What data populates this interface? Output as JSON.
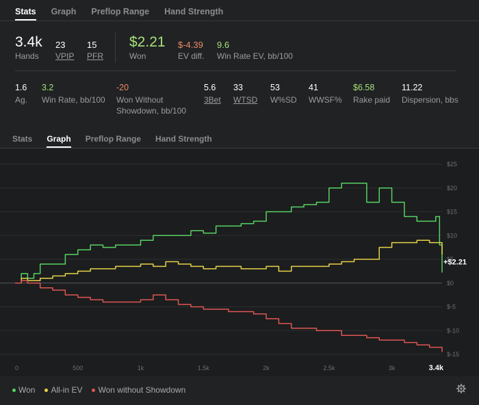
{
  "tabs_top": [
    "Stats",
    "Graph",
    "Preflop Range",
    "Hand Strength"
  ],
  "tabs_bottom": [
    "Stats",
    "Graph",
    "Preflop Range",
    "Hand Strength"
  ],
  "summary": {
    "hands": {
      "value": "3.4k",
      "label": "Hands"
    },
    "vpip": {
      "value": "23",
      "label": "VPIP"
    },
    "pfr": {
      "value": "15",
      "label": "PFR"
    },
    "won": {
      "value": "$2.21",
      "label": "Won"
    },
    "ev_diff": {
      "value": "$-4.39",
      "label": "EV diff."
    },
    "win_rate_ev": {
      "value": "9.6",
      "label": "Win Rate EV, bb/100"
    }
  },
  "stats": [
    {
      "value": "1.6",
      "label": "Ag.",
      "color": "#ffffff"
    },
    {
      "value": "3.2",
      "label": "Win Rate, bb/100",
      "color": "#a6e07b"
    },
    {
      "value": "-20",
      "label": "Won Without Showdown, bb/100",
      "color": "#ef8a66"
    },
    {
      "value": "5.6",
      "label": "3Bet",
      "color": "#ffffff"
    },
    {
      "value": "33",
      "label": "WTSD",
      "color": "#ffffff"
    },
    {
      "value": "53",
      "label": "W%SD",
      "color": "#ffffff"
    },
    {
      "value": "41",
      "label": "WWSF%",
      "color": "#ffffff"
    },
    {
      "value": "$6.58",
      "label": "Rake paid",
      "color": "#a6e07b"
    },
    {
      "value": "11.22",
      "label": "Dispersion, bbs",
      "color": "#ffffff"
    }
  ],
  "colors": {
    "won": "#56d364",
    "allin_ev": "#e6d24a",
    "wwsd": "#e05656",
    "positive": "#a6e07b",
    "negative": "#ef8a66"
  },
  "chart_data": {
    "type": "line",
    "xlim": [
      0,
      3400
    ],
    "ylim": [
      -15,
      25
    ],
    "x_ticks": [
      {
        "value": 0,
        "label": "0"
      },
      {
        "value": 500,
        "label": "500"
      },
      {
        "value": 1000,
        "label": "1k"
      },
      {
        "value": 1500,
        "label": "1.5k"
      },
      {
        "value": 2000,
        "label": "2k"
      },
      {
        "value": 2500,
        "label": "2.5k"
      },
      {
        "value": 3000,
        "label": "3k"
      },
      {
        "value": 3400,
        "label": "3.4k"
      }
    ],
    "y_ticks": [
      {
        "value": 25,
        "label": "$25"
      },
      {
        "value": 20,
        "label": "$20"
      },
      {
        "value": 15,
        "label": "$15"
      },
      {
        "value": 10,
        "label": "$10"
      },
      {
        "value": 5,
        "label": "$5"
      },
      {
        "value": 0,
        "label": "$0"
      },
      {
        "value": -5,
        "label": "$-5"
      },
      {
        "value": -10,
        "label": "$-10"
      },
      {
        "value": -15,
        "label": "$-15"
      }
    ],
    "end_label": "+$2.21",
    "series": [
      {
        "name": "Won",
        "color": "#56d364",
        "x": [
          0,
          50,
          100,
          150,
          200,
          300,
          400,
          500,
          600,
          700,
          800,
          900,
          1000,
          1100,
          1200,
          1300,
          1400,
          1500,
          1600,
          1700,
          1800,
          1900,
          2000,
          2100,
          2200,
          2300,
          2400,
          2500,
          2600,
          2700,
          2800,
          2900,
          3000,
          3100,
          3200,
          3300,
          3350,
          3380,
          3400
        ],
        "y": [
          0,
          2,
          1,
          2,
          4,
          4,
          6,
          7,
          8,
          7.5,
          8,
          8,
          9,
          10,
          10,
          10,
          11,
          10.5,
          12,
          12,
          12.5,
          13,
          15,
          15,
          16,
          16.5,
          17,
          20,
          21,
          21,
          17,
          20,
          17,
          14,
          13,
          13,
          14,
          8,
          2.21
        ]
      },
      {
        "name": "All-in EV",
        "color": "#e6d24a",
        "x": [
          0,
          50,
          100,
          200,
          300,
          400,
          500,
          600,
          700,
          800,
          900,
          1000,
          1100,
          1200,
          1300,
          1400,
          1500,
          1600,
          1700,
          1800,
          1900,
          2000,
          2100,
          2200,
          2300,
          2400,
          2500,
          2600,
          2700,
          2800,
          2900,
          3000,
          3100,
          3200,
          3300,
          3400
        ],
        "y": [
          0,
          1,
          0.5,
          1,
          1.5,
          2,
          2.5,
          3,
          3,
          3.5,
          3.5,
          4,
          3.5,
          4.5,
          4,
          3.5,
          3,
          3.5,
          3.5,
          3,
          3,
          3.5,
          2.5,
          3.5,
          3.5,
          3.5,
          4,
          4.5,
          5,
          5,
          7.5,
          8.5,
          8.5,
          9,
          8.5,
          6
        ]
      },
      {
        "name": "Won without Showdown",
        "color": "#e05656",
        "x": [
          0,
          50,
          100,
          200,
          300,
          400,
          500,
          600,
          700,
          800,
          900,
          1000,
          1100,
          1200,
          1300,
          1400,
          1500,
          1600,
          1700,
          1800,
          1900,
          2000,
          2100,
          2200,
          2300,
          2400,
          2500,
          2600,
          2700,
          2800,
          2900,
          3000,
          3100,
          3200,
          3300,
          3400
        ],
        "y": [
          0,
          0.5,
          0,
          -1,
          -1.5,
          -2.5,
          -3,
          -3.5,
          -4,
          -4,
          -4,
          -3.5,
          -2.5,
          -3.5,
          -4.5,
          -5,
          -5.5,
          -5.5,
          -6,
          -6,
          -6.5,
          -7.5,
          -8.5,
          -9.5,
          -9.5,
          -10,
          -10,
          -11,
          -11,
          -11.5,
          -12,
          -12,
          -12.5,
          -13,
          -13.5,
          -14.5
        ]
      }
    ]
  },
  "legend": [
    {
      "name": "Won",
      "color": "#56d364"
    },
    {
      "name": "All-in EV",
      "color": "#e6d24a"
    },
    {
      "name": "Won without Showdown",
      "color": "#e05656"
    }
  ]
}
